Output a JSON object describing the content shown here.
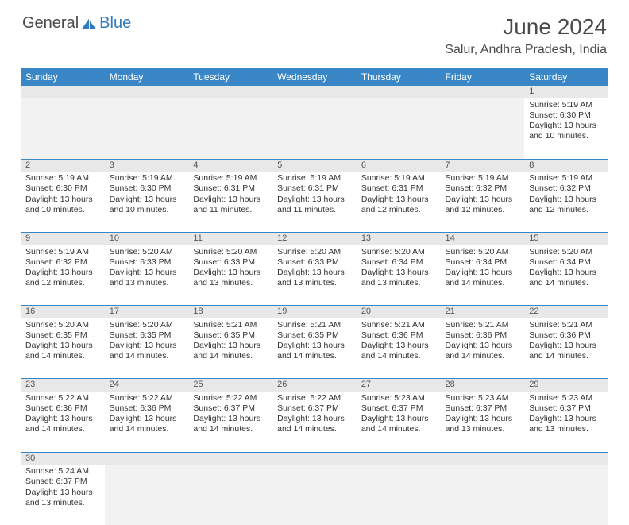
{
  "logo": {
    "text1": "General",
    "text2": "Blue"
  },
  "title": "June 2024",
  "location": "Salur, Andhra Pradesh, India",
  "colors": {
    "header_bg": "#3a87c7",
    "header_text": "#ffffff",
    "daynum_bg": "#e8e8e8",
    "row_divider": "#3a87c7",
    "body_text": "#333333",
    "title_text": "#4a4a4a"
  },
  "weekdays": [
    "Sunday",
    "Monday",
    "Tuesday",
    "Wednesday",
    "Thursday",
    "Friday",
    "Saturday"
  ],
  "weeks": [
    [
      null,
      null,
      null,
      null,
      null,
      null,
      {
        "d": "1",
        "sr": "5:19 AM",
        "ss": "6:30 PM",
        "dl": "13 hours and 10 minutes."
      }
    ],
    [
      {
        "d": "2",
        "sr": "5:19 AM",
        "ss": "6:30 PM",
        "dl": "13 hours and 10 minutes."
      },
      {
        "d": "3",
        "sr": "5:19 AM",
        "ss": "6:30 PM",
        "dl": "13 hours and 10 minutes."
      },
      {
        "d": "4",
        "sr": "5:19 AM",
        "ss": "6:31 PM",
        "dl": "13 hours and 11 minutes."
      },
      {
        "d": "5",
        "sr": "5:19 AM",
        "ss": "6:31 PM",
        "dl": "13 hours and 11 minutes."
      },
      {
        "d": "6",
        "sr": "5:19 AM",
        "ss": "6:31 PM",
        "dl": "13 hours and 12 minutes."
      },
      {
        "d": "7",
        "sr": "5:19 AM",
        "ss": "6:32 PM",
        "dl": "13 hours and 12 minutes."
      },
      {
        "d": "8",
        "sr": "5:19 AM",
        "ss": "6:32 PM",
        "dl": "13 hours and 12 minutes."
      }
    ],
    [
      {
        "d": "9",
        "sr": "5:19 AM",
        "ss": "6:32 PM",
        "dl": "13 hours and 12 minutes."
      },
      {
        "d": "10",
        "sr": "5:20 AM",
        "ss": "6:33 PM",
        "dl": "13 hours and 13 minutes."
      },
      {
        "d": "11",
        "sr": "5:20 AM",
        "ss": "6:33 PM",
        "dl": "13 hours and 13 minutes."
      },
      {
        "d": "12",
        "sr": "5:20 AM",
        "ss": "6:33 PM",
        "dl": "13 hours and 13 minutes."
      },
      {
        "d": "13",
        "sr": "5:20 AM",
        "ss": "6:34 PM",
        "dl": "13 hours and 13 minutes."
      },
      {
        "d": "14",
        "sr": "5:20 AM",
        "ss": "6:34 PM",
        "dl": "13 hours and 14 minutes."
      },
      {
        "d": "15",
        "sr": "5:20 AM",
        "ss": "6:34 PM",
        "dl": "13 hours and 14 minutes."
      }
    ],
    [
      {
        "d": "16",
        "sr": "5:20 AM",
        "ss": "6:35 PM",
        "dl": "13 hours and 14 minutes."
      },
      {
        "d": "17",
        "sr": "5:20 AM",
        "ss": "6:35 PM",
        "dl": "13 hours and 14 minutes."
      },
      {
        "d": "18",
        "sr": "5:21 AM",
        "ss": "6:35 PM",
        "dl": "13 hours and 14 minutes."
      },
      {
        "d": "19",
        "sr": "5:21 AM",
        "ss": "6:35 PM",
        "dl": "13 hours and 14 minutes."
      },
      {
        "d": "20",
        "sr": "5:21 AM",
        "ss": "6:36 PM",
        "dl": "13 hours and 14 minutes."
      },
      {
        "d": "21",
        "sr": "5:21 AM",
        "ss": "6:36 PM",
        "dl": "13 hours and 14 minutes."
      },
      {
        "d": "22",
        "sr": "5:21 AM",
        "ss": "6:36 PM",
        "dl": "13 hours and 14 minutes."
      }
    ],
    [
      {
        "d": "23",
        "sr": "5:22 AM",
        "ss": "6:36 PM",
        "dl": "13 hours and 14 minutes."
      },
      {
        "d": "24",
        "sr": "5:22 AM",
        "ss": "6:36 PM",
        "dl": "13 hours and 14 minutes."
      },
      {
        "d": "25",
        "sr": "5:22 AM",
        "ss": "6:37 PM",
        "dl": "13 hours and 14 minutes."
      },
      {
        "d": "26",
        "sr": "5:22 AM",
        "ss": "6:37 PM",
        "dl": "13 hours and 14 minutes."
      },
      {
        "d": "27",
        "sr": "5:23 AM",
        "ss": "6:37 PM",
        "dl": "13 hours and 14 minutes."
      },
      {
        "d": "28",
        "sr": "5:23 AM",
        "ss": "6:37 PM",
        "dl": "13 hours and 13 minutes."
      },
      {
        "d": "29",
        "sr": "5:23 AM",
        "ss": "6:37 PM",
        "dl": "13 hours and 13 minutes."
      }
    ],
    [
      {
        "d": "30",
        "sr": "5:24 AM",
        "ss": "6:37 PM",
        "dl": "13 hours and 13 minutes."
      },
      null,
      null,
      null,
      null,
      null,
      null
    ]
  ],
  "labels": {
    "sunrise": "Sunrise: ",
    "sunset": "Sunset: ",
    "daylight": "Daylight: "
  }
}
